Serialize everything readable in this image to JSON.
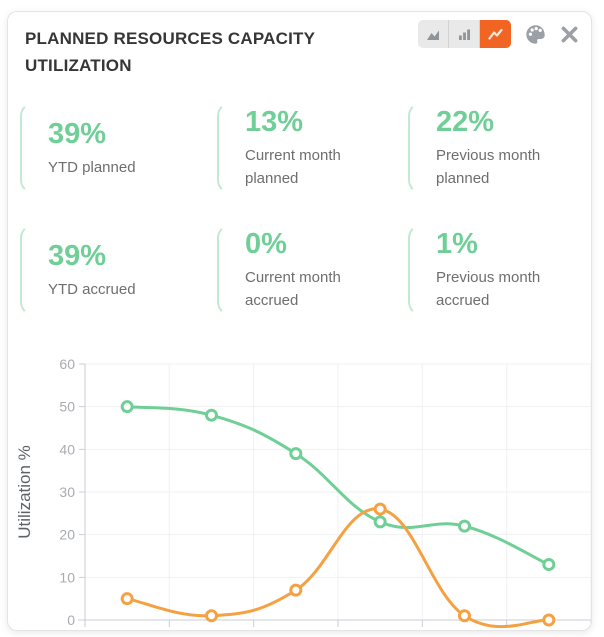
{
  "header": {
    "title": "PLANNED RESOURCES CAPACITY UTILIZATION",
    "chart_type_toggle": {
      "options": [
        "area",
        "bar",
        "line"
      ],
      "selected": "line"
    }
  },
  "stats": [
    {
      "value": "39%",
      "label": "YTD planned"
    },
    {
      "value": "13%",
      "label": "Current month planned"
    },
    {
      "value": "22%",
      "label": "Previous month planned"
    },
    {
      "value": "39%",
      "label": "YTD accrued"
    },
    {
      "value": "0%",
      "label": "Current month accrued"
    },
    {
      "value": "1%",
      "label": "Previous month accrued"
    }
  ],
  "colors": {
    "stat_green": "#6fcf97",
    "card_border_green": "#c3e9d3",
    "selected_toggle_orange": "#f26422",
    "series_green": "#6fcf97",
    "series_orange": "#f5a142",
    "gridline": "#f1f1f1",
    "axis": "#c9ced6",
    "tick_text": "#a8abb0"
  },
  "chart_data": {
    "type": "line",
    "title": "",
    "xlabel": "",
    "ylabel": "Utilization %",
    "ylim": [
      0,
      60
    ],
    "yticks": [
      0,
      10,
      20,
      30,
      40,
      50,
      60
    ],
    "grid": true,
    "legend": "none",
    "x_axis_labels_visible": false,
    "categories": [
      "",
      "",
      "",
      "",
      "",
      ""
    ],
    "series": [
      {
        "name": "green",
        "color": "#6fcf97",
        "values": [
          50,
          48,
          39,
          23,
          22,
          13
        ]
      },
      {
        "name": "orange",
        "color": "#f5a142",
        "values": [
          5,
          1,
          7,
          26,
          1,
          0
        ]
      }
    ]
  }
}
